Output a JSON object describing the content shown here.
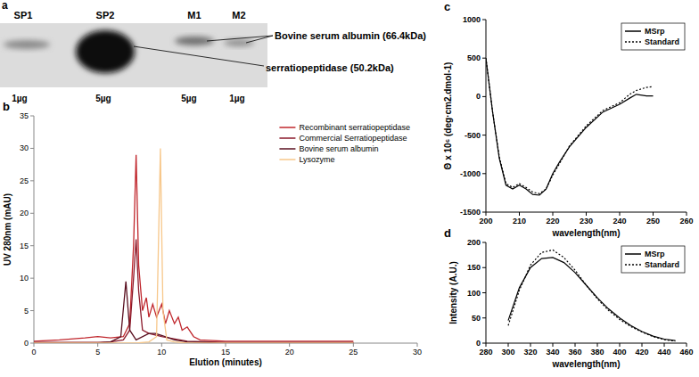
{
  "gel": {
    "label": "a",
    "lanes": [
      {
        "name": "SP1",
        "load": "1µg"
      },
      {
        "name": "SP2",
        "load": "5µg"
      },
      {
        "name": "M1",
        "load": "5µg"
      },
      {
        "name": "M2",
        "load": "1µg"
      }
    ],
    "annotations": [
      "Bovine serum albumin (66.4kDa)",
      "serratiopeptidase (50.2kDa)"
    ]
  },
  "chart_data": [
    {
      "type": "line",
      "title": "b",
      "x_label": "Elution (minutes)",
      "y_label": "UV 280nm (mAU)",
      "xlim": [
        0,
        30
      ],
      "xticks": [
        0,
        5,
        10,
        15,
        20,
        25,
        30
      ],
      "ylim": [
        0,
        35
      ],
      "yticks": [
        0,
        5,
        10,
        15,
        20,
        25,
        30,
        35
      ],
      "legend": "top-right",
      "series": [
        {
          "name": "Recombinant serratiopeptidase",
          "color": "#c0272d",
          "x": [
            0,
            2,
            4,
            5,
            6,
            7,
            7.5,
            7.8,
            8,
            8.2,
            8.5,
            8.8,
            9,
            9.3,
            9.6,
            10,
            10.3,
            10.6,
            11,
            11.3,
            11.6,
            12,
            12.5,
            13,
            15,
            20,
            25
          ],
          "values": [
            0.3,
            0.5,
            0.8,
            1,
            0.8,
            1,
            3,
            15,
            29,
            12,
            5,
            7,
            4,
            6,
            4,
            6,
            3,
            5,
            3,
            4,
            2,
            2.5,
            1,
            0.5,
            0.3,
            0.3,
            0.3
          ]
        },
        {
          "name": "Commercial Serratiopeptidase",
          "color": "#8b1a2b",
          "x": [
            0,
            5,
            6,
            7,
            7.5,
            7.8,
            8,
            8.2,
            8.5,
            9,
            10,
            12,
            15,
            20,
            25
          ],
          "values": [
            0.1,
            0.1,
            0.2,
            0.5,
            2,
            10,
            16,
            8,
            2,
            1.5,
            1,
            0.3,
            0.1,
            0.1,
            0.1
          ]
        },
        {
          "name": "Bovine serum albumin",
          "color": "#5a1020",
          "x": [
            0,
            5,
            6,
            6.8,
            7.2,
            7.5,
            8,
            9,
            9.5,
            10,
            11,
            12,
            15,
            25
          ],
          "values": [
            0,
            0,
            0.2,
            1,
            9.5,
            2,
            0.5,
            1.5,
            1.5,
            1.2,
            0.5,
            0.2,
            0,
            0
          ]
        },
        {
          "name": "Lysozyme",
          "color": "#f7c78a",
          "x": [
            0,
            8,
            9,
            9.6,
            9.9,
            10.1,
            10.4,
            11,
            12,
            25
          ],
          "values": [
            0,
            0,
            0.2,
            1,
            30,
            5,
            0.5,
            0.2,
            0,
            0
          ]
        }
      ]
    },
    {
      "type": "line",
      "title": "c",
      "x_label": "wavelength(nm)",
      "y_label": "Θ x 10⁶ (deg·cm2.dmol-1)",
      "xlim": [
        200,
        260
      ],
      "xticks": [
        200,
        210,
        220,
        230,
        240,
        250,
        260
      ],
      "ylim": [
        -1500,
        1000
      ],
      "yticks": [
        -1500,
        -1000,
        -500,
        0,
        500,
        1000
      ],
      "legend": "top-right",
      "series": [
        {
          "name": "MSrp",
          "color": "#000000",
          "line_style": "solid",
          "x": [
            200,
            202,
            204,
            206,
            208,
            210,
            212,
            214,
            216,
            218,
            220,
            222,
            225,
            230,
            235,
            240,
            243,
            245,
            248,
            250
          ],
          "values": [
            500,
            -200,
            -800,
            -1150,
            -1200,
            -1150,
            -1200,
            -1270,
            -1280,
            -1200,
            -1000,
            -850,
            -650,
            -400,
            -200,
            -100,
            -20,
            30,
            10,
            10
          ]
        },
        {
          "name": "Standard",
          "color": "#000000",
          "line_style": "dotted",
          "x": [
            200,
            202,
            204,
            206,
            208,
            210,
            212,
            214,
            216,
            218,
            220,
            222,
            225,
            230,
            235,
            240,
            243,
            245,
            248,
            250
          ],
          "values": [
            500,
            -200,
            -780,
            -1130,
            -1180,
            -1130,
            -1180,
            -1240,
            -1260,
            -1200,
            -1020,
            -870,
            -640,
            -380,
            -180,
            -80,
            30,
            80,
            120,
            130
          ]
        }
      ]
    },
    {
      "type": "line",
      "title": "d",
      "x_label": "wavelength(nm)",
      "y_label": "Intensity (A.U.)",
      "xlim": [
        280,
        460
      ],
      "xticks": [
        280,
        300,
        320,
        340,
        360,
        380,
        400,
        420,
        440,
        460
      ],
      "ylim": [
        0,
        200
      ],
      "yticks": [
        0,
        50,
        100,
        150,
        200
      ],
      "legend": "top-right",
      "series": [
        {
          "name": "MSrp",
          "color": "#000000",
          "line_style": "solid",
          "x": [
            300,
            310,
            320,
            330,
            340,
            350,
            360,
            370,
            380,
            390,
            400,
            410,
            420,
            430,
            440,
            450
          ],
          "values": [
            45,
            110,
            150,
            168,
            170,
            160,
            140,
            115,
            90,
            68,
            50,
            35,
            23,
            14,
            8,
            5
          ]
        },
        {
          "name": "Standard",
          "color": "#000000",
          "line_style": "dotted",
          "x": [
            300,
            310,
            320,
            330,
            340,
            350,
            360,
            370,
            380,
            390,
            400,
            410,
            420,
            430,
            440,
            450
          ],
          "values": [
            35,
            105,
            155,
            180,
            185,
            170,
            145,
            115,
            88,
            65,
            47,
            33,
            22,
            13,
            7,
            4
          ]
        }
      ]
    }
  ]
}
